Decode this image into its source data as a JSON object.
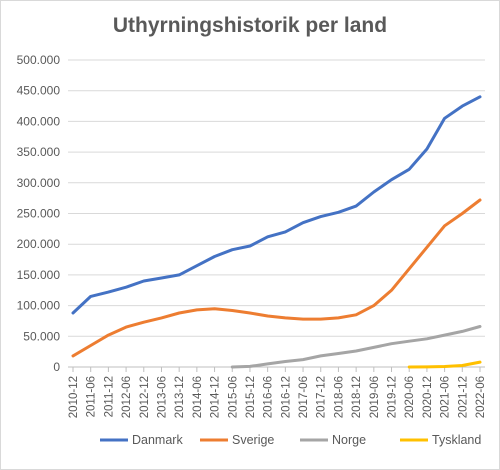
{
  "chart_data": {
    "type": "line",
    "title": "Uthyrningshistorik per land",
    "xlabel": "",
    "ylabel": "",
    "ylim": [
      0,
      500000
    ],
    "yticks": [
      "0",
      "50.000",
      "100.000",
      "150.000",
      "200.000",
      "250.000",
      "300.000",
      "350.000",
      "400.000",
      "450.000",
      "500.000"
    ],
    "categories": [
      "2010-12",
      "2011-06",
      "2011-12",
      "2012-06",
      "2012-12",
      "2013-06",
      "2013-12",
      "2014-06",
      "2014-12",
      "2015-06",
      "2015-12",
      "2016-06",
      "2016-12",
      "2017-06",
      "2017-12",
      "2018-06",
      "2018-12",
      "2019-06",
      "2019-12",
      "2020-06",
      "2020-12",
      "2021-06",
      "2021-12",
      "2022-06"
    ],
    "legend": "bottom",
    "grid": true,
    "series": [
      {
        "name": "Danmark",
        "color": "#4472C4",
        "values": [
          88000,
          115000,
          122000,
          130000,
          140000,
          145000,
          150000,
          165000,
          180000,
          191000,
          197000,
          212000,
          220000,
          235000,
          245000,
          252000,
          262000,
          285000,
          305000,
          322000,
          355000,
          405000,
          425000,
          440000
        ]
      },
      {
        "name": "Sverige",
        "color": "#ED7D31",
        "values": [
          18000,
          35000,
          52000,
          65000,
          73000,
          80000,
          88000,
          93000,
          95000,
          92000,
          88000,
          83000,
          80000,
          78000,
          78000,
          80000,
          85000,
          100000,
          125000,
          160000,
          195000,
          230000,
          250000,
          272000
        ]
      },
      {
        "name": "Norge",
        "color": "#A5A5A5",
        "values": [
          null,
          null,
          null,
          null,
          null,
          null,
          null,
          null,
          null,
          0,
          1000,
          5000,
          9000,
          12000,
          18000,
          22000,
          26000,
          32000,
          38000,
          42000,
          46000,
          52000,
          58000,
          66000
        ]
      },
      {
        "name": "Tyskland",
        "color": "#FFC000",
        "values": [
          null,
          null,
          null,
          null,
          null,
          null,
          null,
          null,
          null,
          null,
          null,
          null,
          null,
          null,
          null,
          null,
          null,
          null,
          null,
          0,
          200,
          800,
          2500,
          8000
        ]
      }
    ]
  }
}
